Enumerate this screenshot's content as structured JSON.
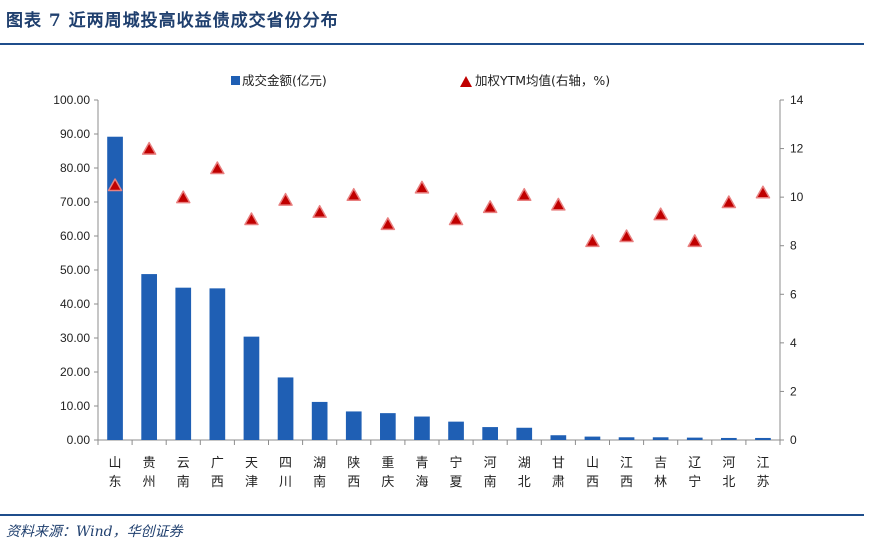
{
  "header": {
    "title": "图表 7   近两周城投高收益债成交省份分布"
  },
  "footer": {
    "source": "资料来源：Wind，华创证券"
  },
  "colors": {
    "bar": "#1f5fb4",
    "marker": "#c00000",
    "marker_stroke": "#e88080",
    "rule": "#1f4e8c"
  },
  "chart_data": {
    "type": "bar",
    "categories": [
      [
        "山",
        "东"
      ],
      [
        "贵",
        "州"
      ],
      [
        "云",
        "南"
      ],
      [
        "广",
        "西"
      ],
      [
        "天",
        "津"
      ],
      [
        "四",
        "川"
      ],
      [
        "湖",
        "南"
      ],
      [
        "陕",
        "西"
      ],
      [
        "重",
        "庆"
      ],
      [
        "青",
        "海"
      ],
      [
        "宁",
        "夏"
      ],
      [
        "河",
        "南"
      ],
      [
        "湖",
        "北"
      ],
      [
        "甘",
        "肃"
      ],
      [
        "山",
        "西"
      ],
      [
        "江",
        "西"
      ],
      [
        "吉",
        "林"
      ],
      [
        "辽",
        "宁"
      ],
      [
        "河",
        "北"
      ],
      [
        "江",
        "苏"
      ]
    ],
    "series": [
      {
        "name": "成交金额(亿元)",
        "type": "bar",
        "axis": "left",
        "values": [
          89.2,
          48.8,
          44.8,
          44.6,
          30.4,
          18.4,
          11.2,
          8.4,
          7.9,
          6.9,
          5.4,
          3.8,
          3.6,
          1.4,
          1.0,
          0.8,
          0.8,
          0.7,
          0.6,
          0.6
        ]
      },
      {
        "name": "加权YTM均值(右轴，%)",
        "type": "scatter",
        "axis": "right",
        "marker": "triangle",
        "values": [
          10.5,
          12.0,
          10.0,
          11.2,
          9.1,
          9.9,
          9.4,
          10.1,
          8.9,
          10.4,
          9.1,
          9.6,
          10.1,
          9.7,
          8.2,
          8.4,
          9.3,
          8.2,
          9.8,
          10.2
        ]
      }
    ],
    "y_left": {
      "min": 0,
      "max": 100,
      "ticks": [
        "0.00",
        "10.00",
        "20.00",
        "30.00",
        "40.00",
        "50.00",
        "60.00",
        "70.00",
        "80.00",
        "90.00",
        "100.00"
      ]
    },
    "y_right": {
      "min": 0,
      "max": 14,
      "ticks": [
        "0",
        "2",
        "4",
        "6",
        "8",
        "10",
        "12",
        "14"
      ]
    },
    "legend_position": "top",
    "grid": false
  }
}
